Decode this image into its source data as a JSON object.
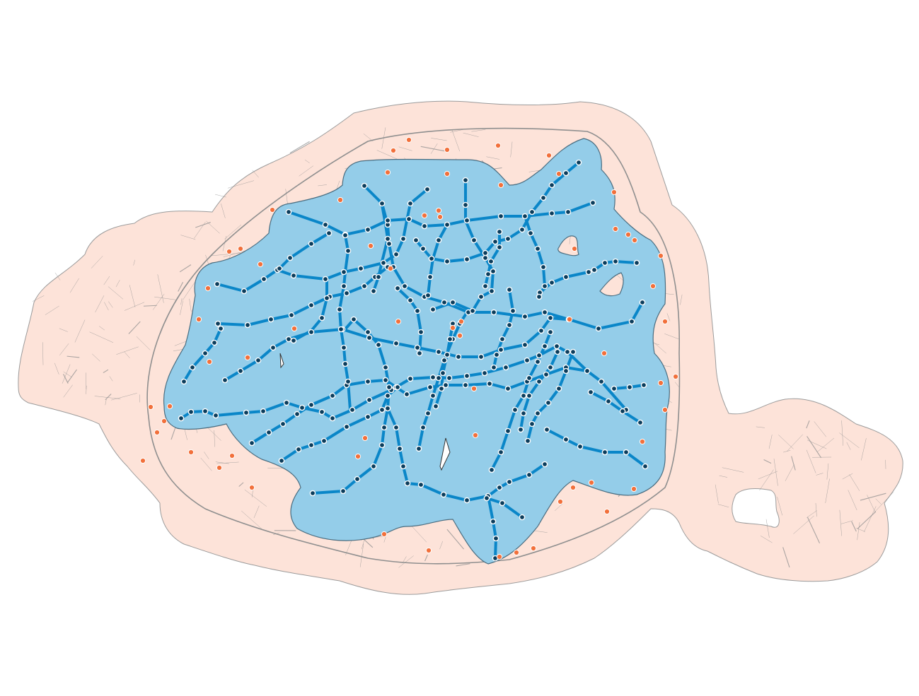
{
  "map": {
    "colors": {
      "background": "#ffffff",
      "outer_buffer_fill": "#fde3d9",
      "outer_buffer_stroke": "#9b9b9b",
      "inner_buffer_fill": "#94cde9",
      "inner_buffer_stroke": "#4a6d80",
      "street_lines": "#8f8f8f",
      "route_lines": "#0a86c8",
      "station_fill": "#0b3d5c",
      "station_stroke": "#ffffff",
      "poi_fill": "#f2703b",
      "poi_stroke": "#ffffff"
    },
    "layers": [
      "outer-buffer-zone",
      "street-network",
      "inner-buffer-zone",
      "route-network",
      "transit-stations",
      "points-of-interest"
    ]
  }
}
